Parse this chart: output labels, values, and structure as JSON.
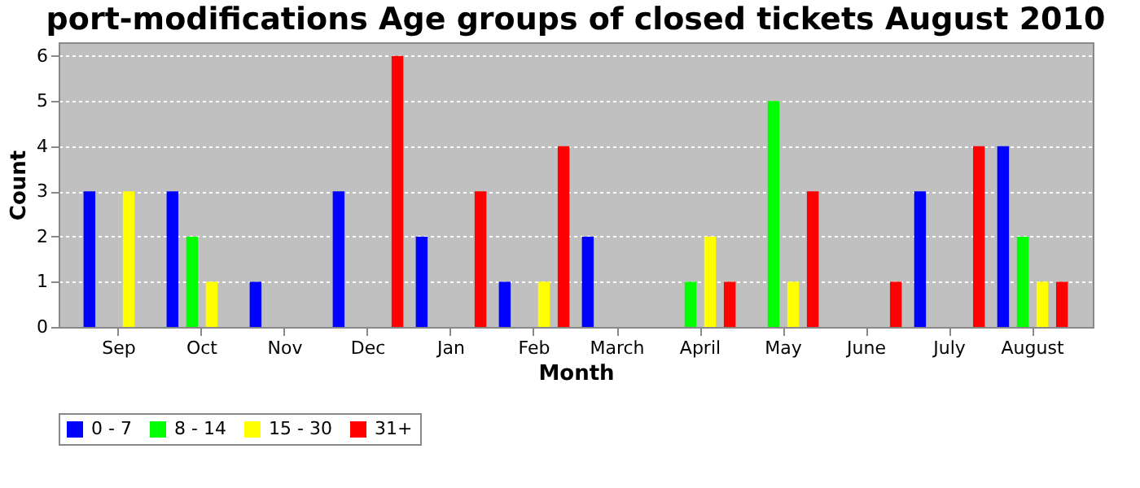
{
  "chart_data": {
    "type": "bar",
    "title": "port-modifications Age groups of closed tickets August 2010",
    "xlabel": "Month",
    "ylabel": "Count",
    "categories": [
      "Sep",
      "Oct",
      "Nov",
      "Dec",
      "Jan",
      "Feb",
      "March",
      "April",
      "May",
      "June",
      "July",
      "August"
    ],
    "series": [
      {
        "name": "0 - 7",
        "color": "#0000ff",
        "values": [
          3,
          3,
          1,
          3,
          2,
          1,
          2,
          0,
          0,
          0,
          3,
          4
        ]
      },
      {
        "name": "8 - 14",
        "color": "#00ff00",
        "values": [
          0,
          2,
          0,
          0,
          0,
          0,
          0,
          1,
          5,
          0,
          0,
          2
        ]
      },
      {
        "name": "15 - 30",
        "color": "#ffff00",
        "values": [
          3,
          1,
          0,
          0,
          0,
          1,
          0,
          2,
          1,
          0,
          0,
          1
        ]
      },
      {
        "name": "31+",
        "color": "#ff0000",
        "values": [
          0,
          0,
          0,
          6,
          3,
          4,
          0,
          1,
          3,
          1,
          4,
          1
        ]
      }
    ],
    "ylim": [
      0,
      6.3
    ],
    "yticks": [
      0,
      1,
      2,
      3,
      4,
      5,
      6
    ],
    "grid": "y",
    "legend": "bottom"
  }
}
